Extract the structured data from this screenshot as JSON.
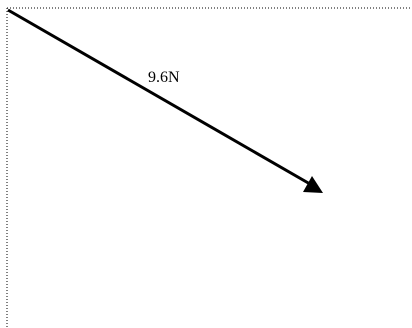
{
  "diagram": {
    "force_label": "9.6N",
    "colors": {
      "vector": "#000000",
      "frame": "#000000",
      "background": "#ffffff"
    }
  }
}
